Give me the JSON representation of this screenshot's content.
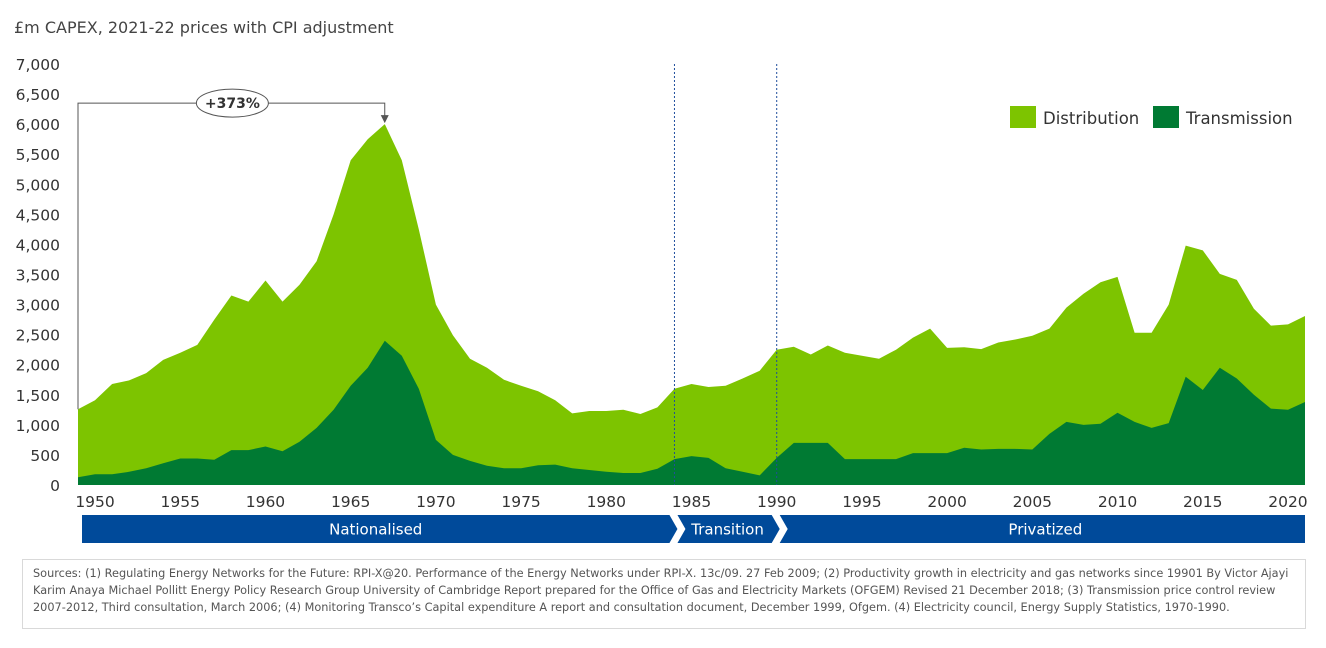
{
  "chart_data": {
    "type": "area",
    "stacked": true,
    "title": "£m CAPEX, 2021-22 prices with CPI adjustment",
    "xlabel": "",
    "ylabel": "",
    "xlim": [
      1949,
      2021
    ],
    "ylim": [
      0,
      7000
    ],
    "y_ticks": [
      "0",
      "500",
      "1,000",
      "1,500",
      "2,000",
      "2,500",
      "3,000",
      "3,500",
      "4,000",
      "4,500",
      "5,000",
      "5,500",
      "6,000",
      "6,500",
      "7,000"
    ],
    "y_tick_values": [
      0,
      500,
      1000,
      1500,
      2000,
      2500,
      3000,
      3500,
      4000,
      4500,
      5000,
      5500,
      6000,
      6500,
      7000
    ],
    "x_ticks": [
      "1950",
      "1955",
      "1960",
      "1965",
      "1970",
      "1975",
      "1980",
      "1985",
      "1990",
      "1995",
      "2000",
      "2005",
      "2010",
      "2015",
      "2020"
    ],
    "x_tick_values": [
      1950,
      1955,
      1960,
      1965,
      1970,
      1975,
      1980,
      1985,
      1990,
      1995,
      2000,
      2005,
      2010,
      2015,
      2020
    ],
    "grid": false,
    "legend": {
      "placement": "top-right",
      "entries": [
        "Distribution",
        "Transmission"
      ]
    },
    "x": [
      1949,
      1950,
      1951,
      1952,
      1953,
      1954,
      1955,
      1956,
      1957,
      1958,
      1959,
      1960,
      1961,
      1962,
      1963,
      1964,
      1965,
      1966,
      1967,
      1968,
      1969,
      1970,
      1971,
      1972,
      1973,
      1974,
      1975,
      1976,
      1977,
      1978,
      1979,
      1980,
      1981,
      1982,
      1983,
      1984,
      1985,
      1986,
      1987,
      1988,
      1989,
      1990,
      1991,
      1992,
      1993,
      1994,
      1995,
      1996,
      1997,
      1998,
      1999,
      2000,
      2001,
      2002,
      2003,
      2004,
      2005,
      2006,
      2007,
      2008,
      2009,
      2010,
      2011,
      2012,
      2013,
      2014,
      2015,
      2016,
      2017,
      2018,
      2019,
      2020,
      2021
    ],
    "series": [
      {
        "name": "Transmission",
        "color": "#007a33",
        "values": [
          130,
          180,
          180,
          220,
          280,
          360,
          440,
          440,
          420,
          580,
          580,
          640,
          560,
          720,
          950,
          1250,
          1650,
          1950,
          2400,
          2150,
          1600,
          750,
          500,
          400,
          320,
          280,
          280,
          330,
          340,
          280,
          250,
          220,
          200,
          200,
          270,
          430,
          480,
          450,
          280,
          220,
          160,
          450,
          700,
          700,
          700,
          430,
          430,
          430,
          430,
          530,
          530,
          530,
          620,
          590,
          600,
          600,
          590,
          850,
          1050,
          1000,
          1020,
          1200,
          1050,
          950,
          1030,
          1800,
          1580,
          1950,
          1770,
          1500,
          1270,
          1250,
          1380
        ]
      },
      {
        "name": "Distribution",
        "color": "#7dc400",
        "values": [
          1130,
          1230,
          1500,
          1520,
          1580,
          1720,
          1760,
          1890,
          2330,
          2570,
          2470,
          2760,
          2490,
          2610,
          2770,
          3250,
          3750,
          3800,
          3600,
          3250,
          2650,
          2250,
          1990,
          1700,
          1630,
          1470,
          1370,
          1230,
          1070,
          910,
          980,
          1010,
          1050,
          980,
          1020,
          1170,
          1200,
          1180,
          1370,
          1550,
          1740,
          1800,
          1600,
          1470,
          1620,
          1770,
          1720,
          1670,
          1820,
          1920,
          2070,
          1750,
          1670,
          1670,
          1770,
          1820,
          1890,
          1750,
          1900,
          2180,
          2350,
          2260,
          1480,
          1580,
          1970,
          2180,
          2320,
          1560,
          1640,
          1430,
          1380,
          1420,
          1430
        ]
      }
    ],
    "annotations": {
      "growth_label": "+373%",
      "growth_from": {
        "x": 1949,
        "y": 1260
      },
      "growth_to": {
        "x": 1967,
        "y": 6000
      },
      "bracket_y": 6350,
      "dividers": [
        1984,
        1990
      ],
      "periods": [
        {
          "label": "Nationalised",
          "from": 1949,
          "to": 1984
        },
        {
          "label": "Transition",
          "from": 1984,
          "to": 1990
        },
        {
          "label": "Privatized",
          "from": 1990,
          "to": 2022
        }
      ],
      "period_color": "#004a9a"
    }
  },
  "sources": "Sources: (1) Regulating Energy Networks for the Future: RPI-X@20. Performance of the Energy Networks under RPI-X. 13c/09. 27 Feb 2009; (2) Productivity growth in electricity and gas networks since 19901 By Victor Ajayi Karim Anaya Michael Pollitt Energy Policy Research Group University of Cambridge Report prepared for the Office of Gas and Electricity Markets (OFGEM) Revised 21 December 2018; (3) Transmission price control review 2007-2012, Third consultation, March 2006; (4) Monitoring Transco’s Capital expenditure A report and consultation document, December 1999, Ofgem. (4) Electricity council, Energy Supply Statistics, 1970-1990."
}
